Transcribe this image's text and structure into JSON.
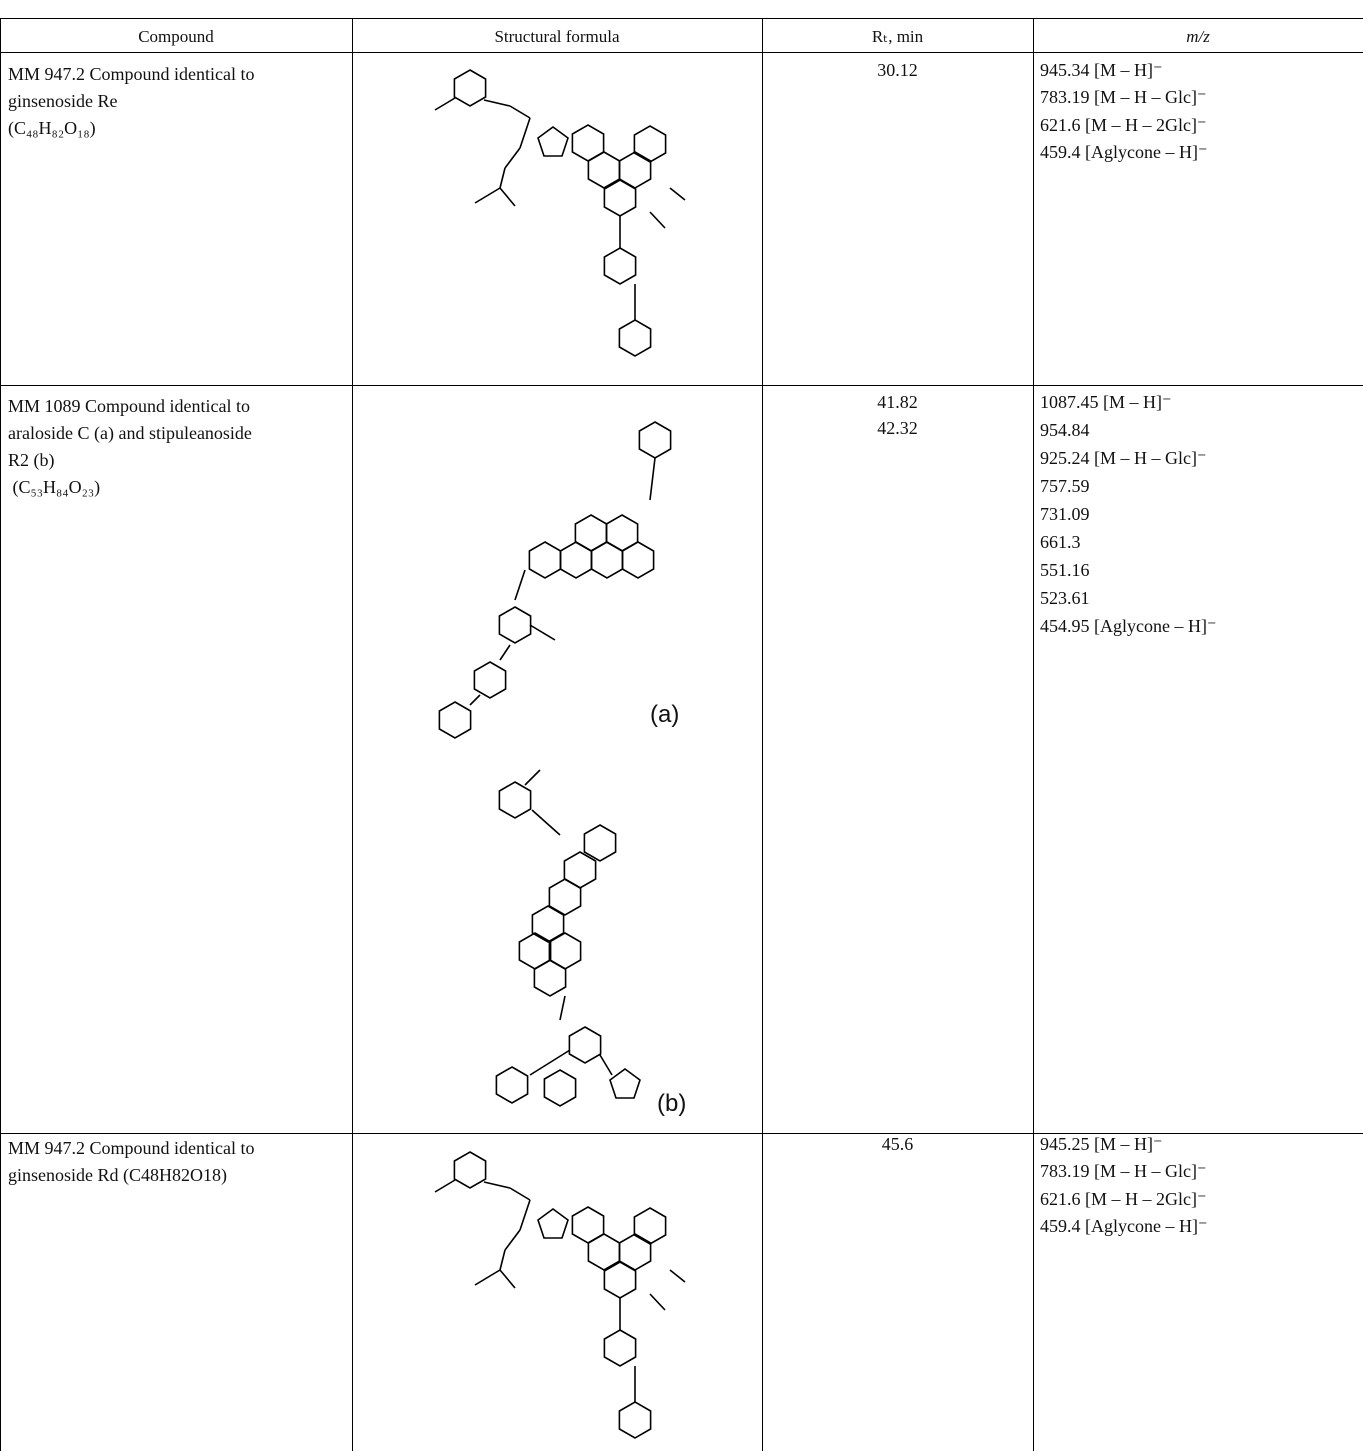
{
  "table": {
    "headers": [
      "Compound",
      "Structural formula",
      "Rₜ, min",
      "m/z"
    ],
    "rows": [
      {
        "compound": [
          "MM 947.2 Compound identical to",
          "ginsenoside Re",
          "(C₄₈H₈₂O₁₈)"
        ],
        "rt": [
          30.12
        ],
        "mz": [
          "945.34 [M – H]⁻",
          "783.19 [M – H – Glc]⁻",
          "621.6 [M – H – 2Glc]⁻",
          "459.4 [Aglycone – H]⁻"
        ]
      },
      {
        "compound": [
          "MM 1089 Compound identical to",
          "araloside C (a) and stipuleanoside",
          "R2 (b)",
          " (C₅₃H₈₄O₂₃)"
        ],
        "structure_labels": [
          "(a)",
          "(b)"
        ],
        "rt": [
          41.82,
          42.32
        ],
        "mz": [
          "1087.45 [M – H]⁻",
          "954.84",
          "925.24 [M – H – Glc]⁻",
          "757.59",
          "731.09",
          "661.3",
          "551.16",
          "523.61",
          "454.95 [Aglycone – H]⁻"
        ]
      },
      {
        "compound": [
          "MM 947.2 Compound identical to",
          "ginsenoside Rd (C48H82O18)"
        ],
        "rt": [
          45.6
        ],
        "mz": [
          "945.25 [M – H]⁻",
          "783.19 [M – H – Glc]⁻",
          "621.6 [M – H – 2Glc]⁻",
          "459.4 [Aglycone – H]⁻"
        ]
      }
    ]
  }
}
